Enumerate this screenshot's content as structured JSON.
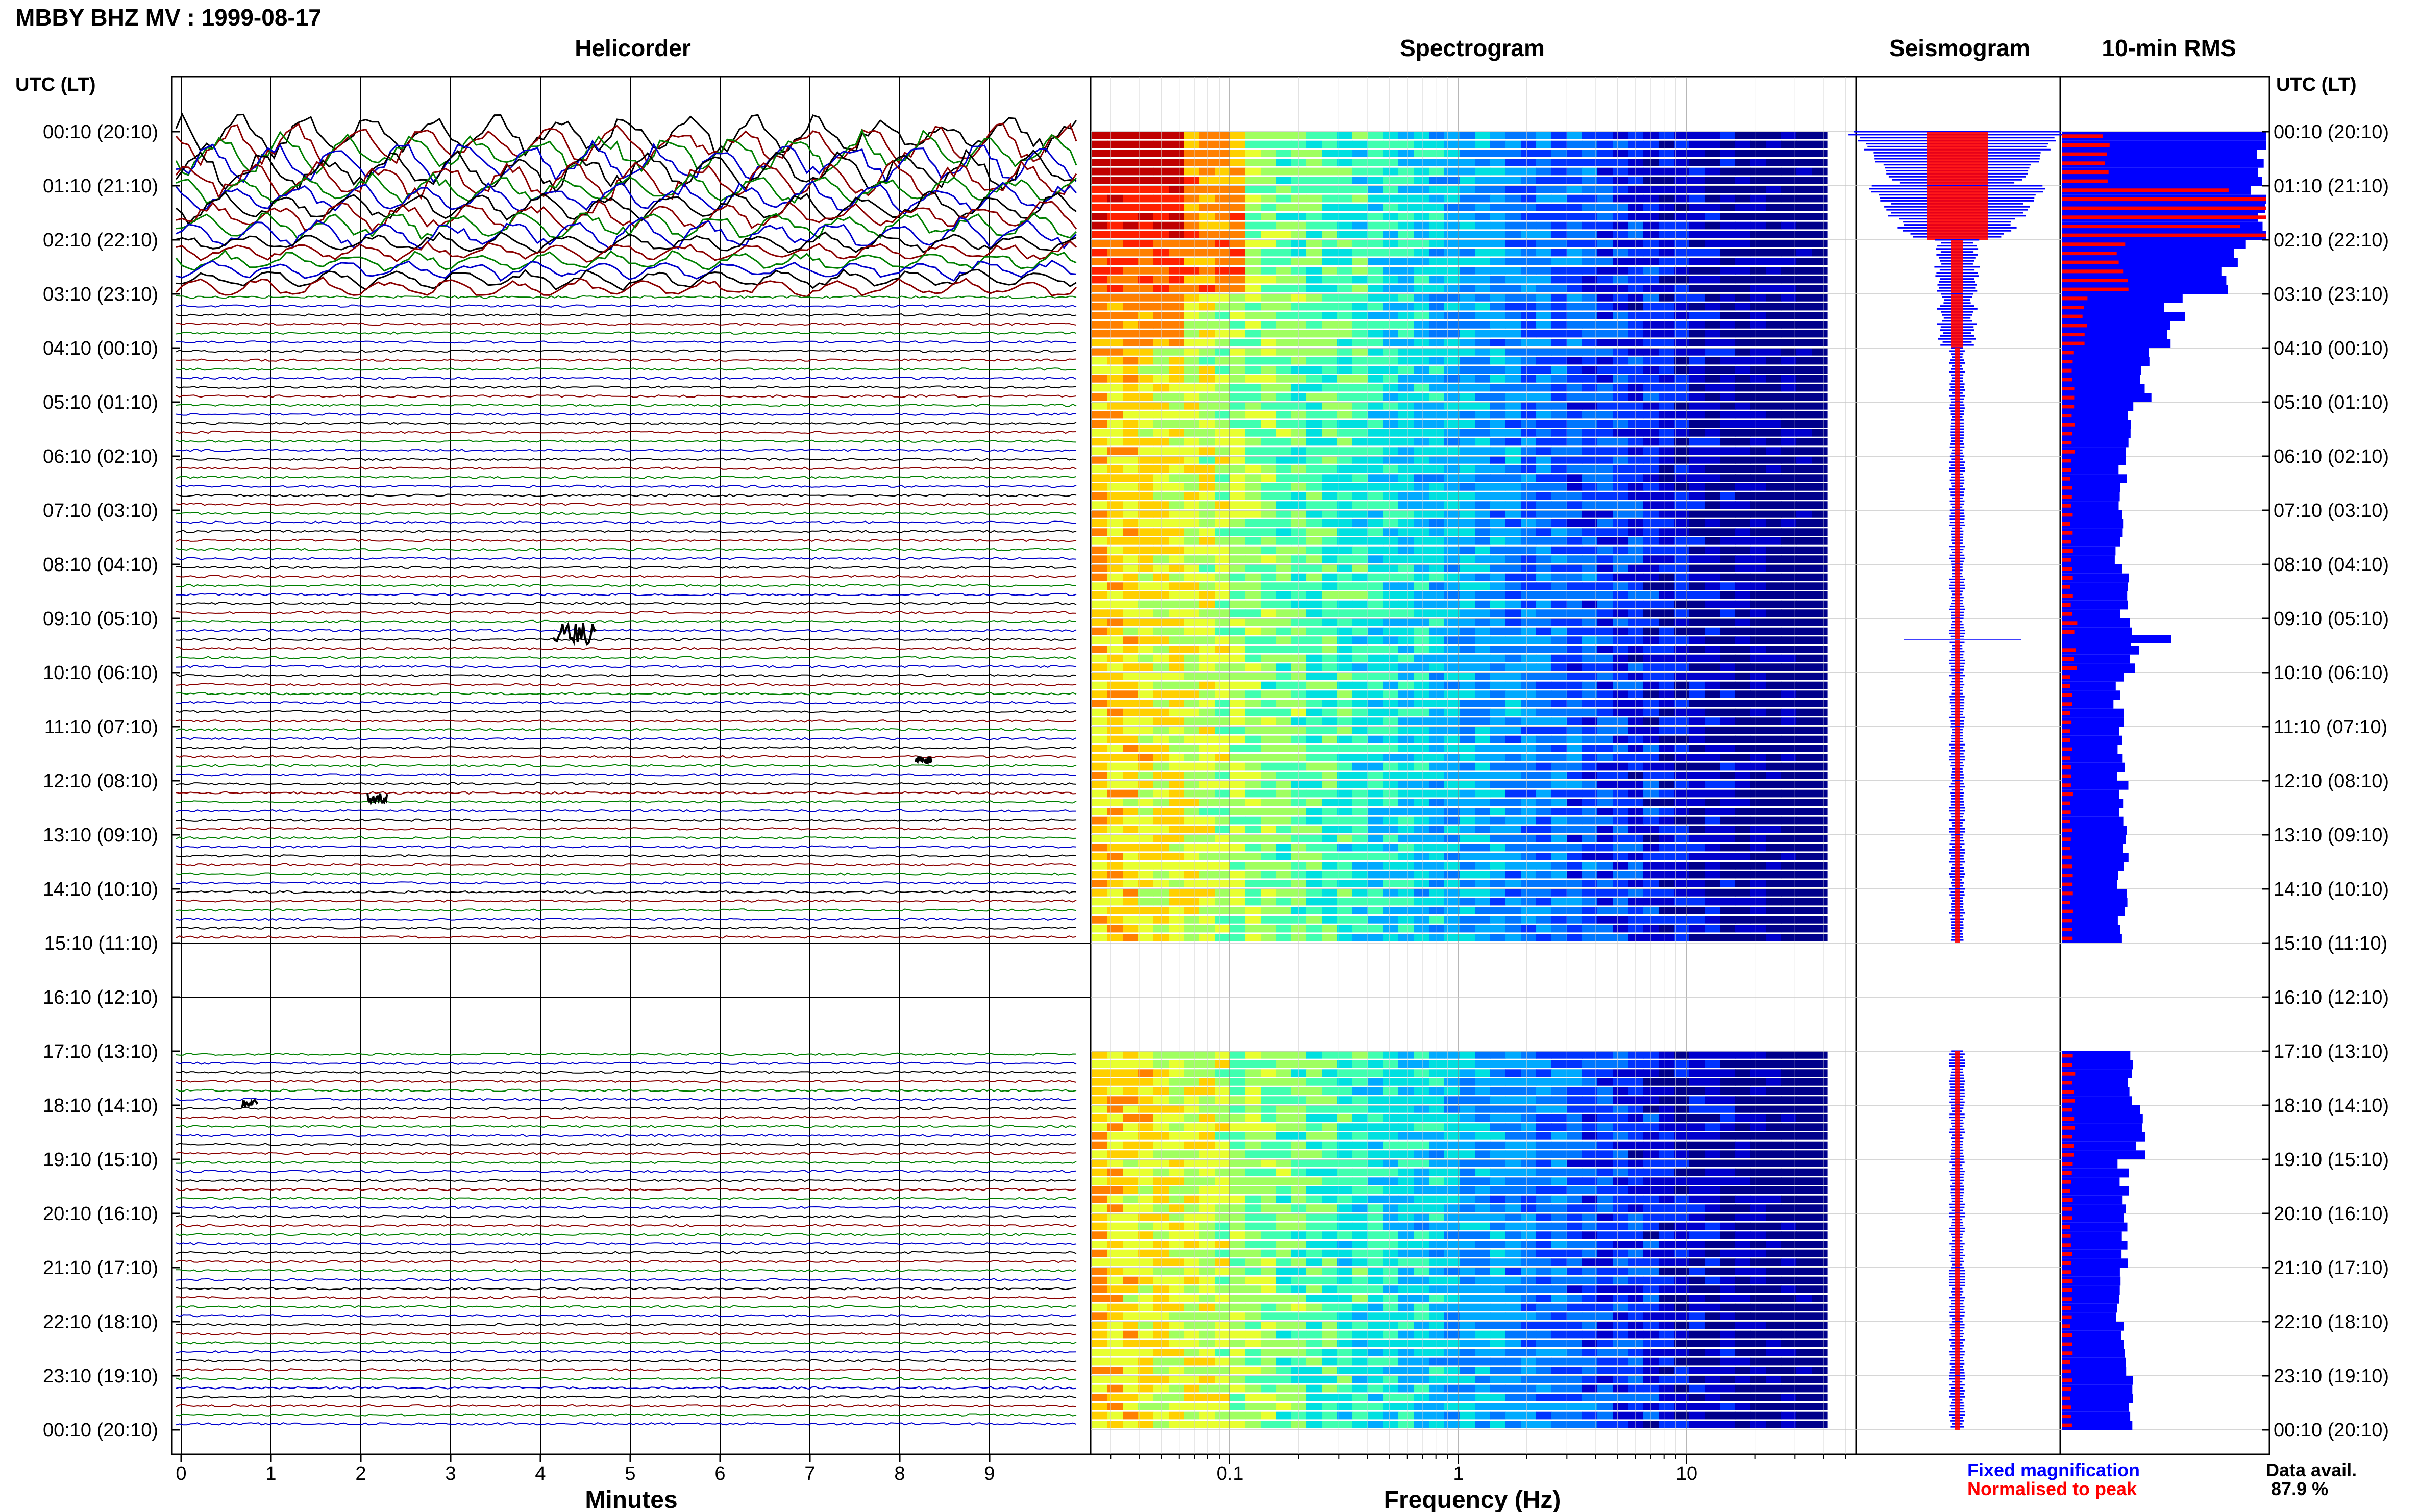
{
  "header": {
    "title": "MBBY BHZ MV : 1999-08-17",
    "panel_titles": {
      "helicorder": "Helicorder",
      "spectrogram": "Spectrogram",
      "seismogram": "Seismogram",
      "rms": "10-min RMS"
    },
    "axis_header_left": "UTC (LT)",
    "axis_header_right": "UTC (LT)"
  },
  "time_labels": [
    "00:10 (20:10)",
    "01:10 (21:10)",
    "02:10 (22:10)",
    "03:10 (23:10)",
    "04:10 (00:10)",
    "05:10 (01:10)",
    "06:10 (02:10)",
    "07:10 (03:10)",
    "08:10 (04:10)",
    "09:10 (05:10)",
    "10:10 (06:10)",
    "11:10 (07:10)",
    "12:10 (08:10)",
    "13:10 (09:10)",
    "14:10 (10:10)",
    "15:10 (11:10)",
    "16:10 (12:10)",
    "17:10 (13:10)",
    "18:10 (14:10)",
    "19:10 (15:10)",
    "20:10 (16:10)",
    "21:10 (17:10)",
    "22:10 (18:10)",
    "23:10 (19:10)",
    "00:10 (20:10)"
  ],
  "helicorder": {
    "xlabel": "Minutes",
    "x_ticks": [
      "0",
      "1",
      "2",
      "3",
      "4",
      "5",
      "6",
      "7",
      "8",
      "9"
    ],
    "trace_colors": [
      "#000000",
      "#8b0000",
      "#008000",
      "#0000cd"
    ]
  },
  "spectrogram": {
    "xlabel": "Frequency (Hz)",
    "x_ticks": [
      "0.1",
      "1",
      "10"
    ]
  },
  "legend": {
    "fixed": "Fixed magnification",
    "normalised": "Normalised to peak",
    "fixed_color": "#0000ff",
    "normalised_color": "#ff0000"
  },
  "data_availability": {
    "label": "Data avail.",
    "value": "87.9 %",
    "percent": 87.9
  },
  "chart_data": {
    "type": "bar",
    "categories": [
      "00:10",
      "01:10",
      "02:10",
      "03:10",
      "04:10",
      "05:10",
      "06:10",
      "07:10",
      "08:10",
      "09:10",
      "10:10",
      "11:10",
      "12:10",
      "13:10",
      "14:10",
      "15:10",
      "16:10",
      "17:10",
      "18:10",
      "19:10",
      "20:10",
      "21:10",
      "22:10",
      "23:10"
    ],
    "series": [
      {
        "name": "Fixed magnification",
        "values": [
          1.0,
          0.95,
          0.85,
          0.55,
          0.4,
          0.32,
          0.3,
          0.28,
          0.3,
          0.35,
          0.28,
          0.28,
          0.3,
          0.3,
          0.3,
          0,
          0,
          0.36,
          0.38,
          0.3,
          0.3,
          0.28,
          0.3,
          0.32
        ]
      },
      {
        "name": "Normalised to peak",
        "values": [
          0.25,
          1.0,
          0.3,
          0.12,
          0.06,
          0.06,
          0.05,
          0.05,
          0.05,
          0.07,
          0.05,
          0.05,
          0.05,
          0.05,
          0.05,
          0,
          0,
          0.06,
          0.06,
          0.05,
          0.05,
          0.05,
          0.05,
          0.05
        ]
      }
    ],
    "data_gap_hours": [
      "15:10",
      "16:10"
    ],
    "ylabel": "UTC (LT)"
  }
}
